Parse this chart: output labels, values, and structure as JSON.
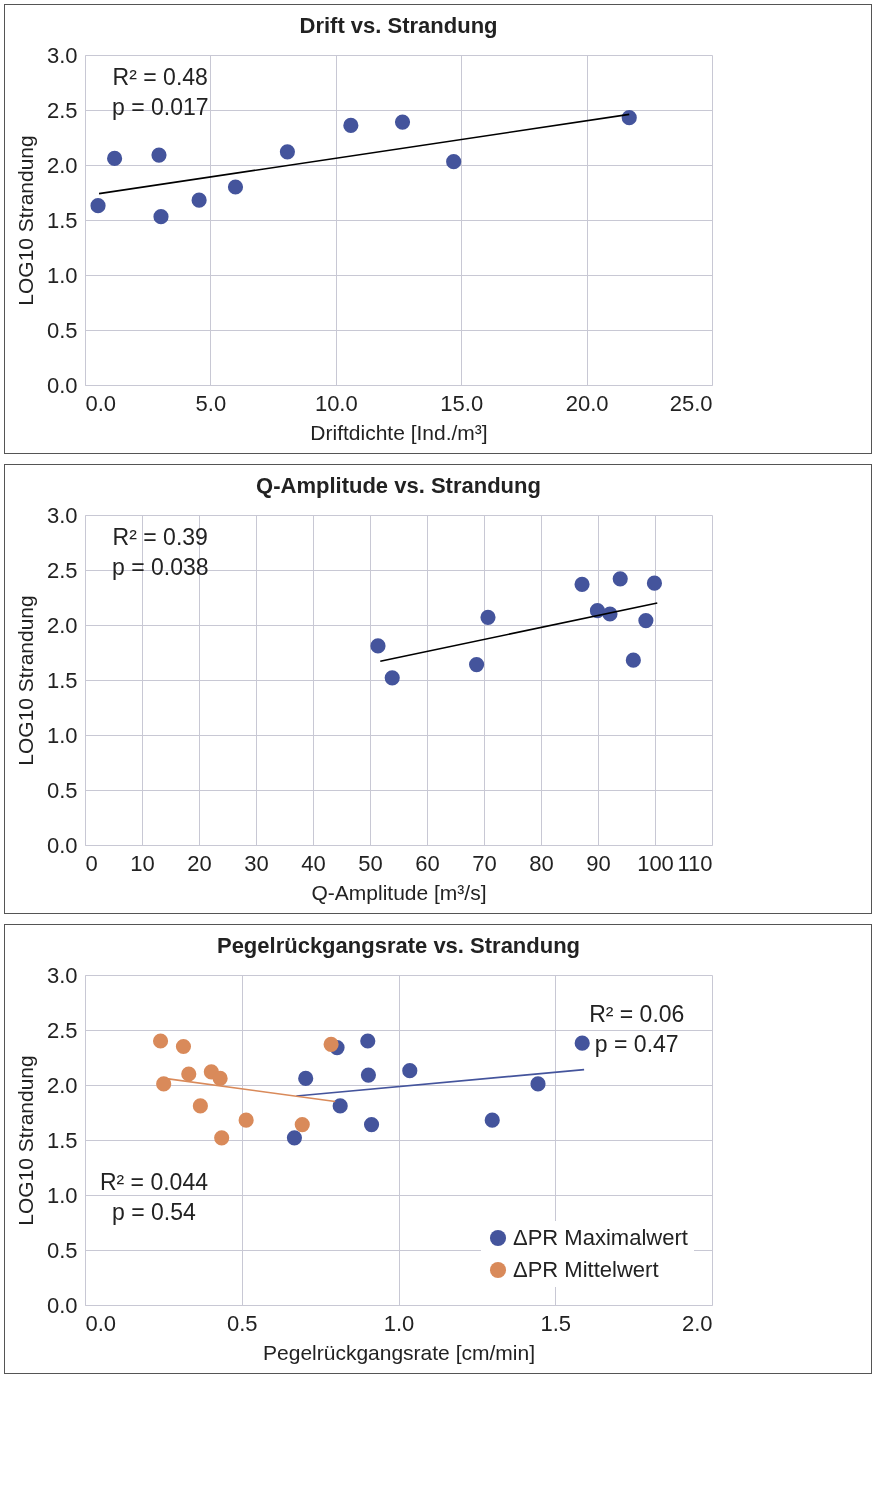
{
  "chart_data": [
    {
      "type": "scatter",
      "title": "Drift vs. Strandung",
      "xlabel": "Driftdichte [Ind./m³]",
      "ylabel": "LOG10 Strandung",
      "series": [
        {
          "color": "#44549c",
          "x": [
            0.52,
            1.18,
            2.95,
            3.03,
            4.55,
            6.0,
            8.07,
            10.6,
            12.66,
            14.7,
            21.7
          ],
          "values": [
            1.63,
            2.06,
            2.09,
            1.53,
            1.68,
            1.8,
            2.12,
            2.36,
            2.39,
            2.03,
            2.43
          ]
        },
        {
          "type": "line",
          "color": "#000000",
          "x": [
            0.56,
            21.7
          ],
          "values": [
            1.74,
            2.46
          ]
        }
      ],
      "annotations": [
        "R² = 0.48",
        "p = 0.017"
      ],
      "xlim": [
        0,
        25
      ],
      "xticks": [
        {
          "value": 0,
          "label": "0.0"
        },
        {
          "value": 5,
          "label": "5.0"
        },
        {
          "value": 10,
          "label": "10.0"
        },
        {
          "value": 15,
          "label": "15.0"
        },
        {
          "value": 20,
          "label": "20.0"
        },
        {
          "value": 25,
          "label": "25.0"
        }
      ],
      "ylim": [
        0,
        3
      ],
      "yticks": [
        {
          "value": 0,
          "label": "0.0"
        },
        0.5,
        {
          "value": 1,
          "label": "1.0"
        },
        1.5,
        {
          "value": 2,
          "label": "2.0"
        },
        2.5,
        {
          "value": 3,
          "label": "3.0"
        }
      ],
      "grid": true
    },
    {
      "type": "scatter",
      "title": "Q-Amplitude vs. Strandung",
      "xlabel": "Q-Amplitude [m³/s]",
      "ylabel": "LOG10 Strandung",
      "series": [
        {
          "color": "#44549c",
          "x": [
            51.4,
            53.9,
            68.7,
            70.7,
            87.2,
            89.9,
            92.1,
            93.9,
            96.2,
            98.4,
            99.9
          ],
          "values": [
            1.81,
            1.52,
            1.64,
            2.07,
            2.37,
            2.13,
            2.1,
            2.42,
            1.68,
            2.04,
            2.38
          ]
        },
        {
          "type": "line",
          "color": "#000000",
          "x": [
            51.8,
            100.4
          ],
          "values": [
            1.67,
            2.2
          ]
        }
      ],
      "annotations": [
        "R² = 0.39",
        "p = 0.038"
      ],
      "xlim": [
        0,
        110
      ],
      "xticks": [
        0,
        10,
        20,
        30,
        40,
        50,
        60,
        70,
        80,
        90,
        100,
        110
      ],
      "ylim": [
        0,
        3
      ],
      "yticks": [
        {
          "value": 0,
          "label": "0.0"
        },
        0.5,
        {
          "value": 1,
          "label": "1.0"
        },
        1.5,
        {
          "value": 2,
          "label": "2.0"
        },
        2.5,
        {
          "value": 3,
          "label": "3.0"
        }
      ],
      "grid": true
    },
    {
      "type": "scatter",
      "title": "Pegelrückgangsrate vs. Strandung",
      "xlabel": "Pegelrückgangsrate [cm/min]",
      "ylabel": "LOG10 Strandung",
      "series": [
        {
          "name": "ΔPR Maximalwert",
          "color": "#44549c",
          "x": [
            0.668,
            0.704,
            0.804,
            0.814,
            0.902,
            0.904,
            0.914,
            1.036,
            1.299,
            1.445,
            1.586
          ],
          "values": [
            1.52,
            2.06,
            2.34,
            1.81,
            2.4,
            2.09,
            1.64,
            2.13,
            1.68,
            2.01,
            2.38
          ]
        },
        {
          "name": "ΔPR Mittelwert",
          "color": "#d98a5a",
          "x": [
            0.241,
            0.251,
            0.314,
            0.331,
            0.368,
            0.403,
            0.431,
            0.436,
            0.514,
            0.693,
            0.785
          ],
          "values": [
            2.4,
            2.01,
            2.35,
            2.1,
            1.81,
            2.12,
            2.06,
            1.52,
            1.68,
            1.64,
            2.37
          ]
        },
        {
          "type": "line",
          "color": "#44549c",
          "x": [
            0.674,
            1.592
          ],
          "values": [
            1.9,
            2.14
          ]
        },
        {
          "type": "line",
          "color": "#d98a5a",
          "x": [
            0.254,
            0.798
          ],
          "values": [
            2.06,
            1.85
          ]
        }
      ],
      "annotations": [
        "R² = 0.06",
        "p = 0.47",
        "R² = 0.044",
        "p = 0.54"
      ],
      "xlim": [
        0,
        2
      ],
      "xticks": [
        {
          "value": 0,
          "label": "0.0"
        },
        0.5,
        {
          "value": 1,
          "label": "1.0"
        },
        1.5,
        {
          "value": 2,
          "label": "2.0"
        }
      ],
      "ylim": [
        0,
        3
      ],
      "yticks": [
        {
          "value": 0,
          "label": "0.0"
        },
        0.5,
        {
          "value": 1,
          "label": "1.0"
        },
        1.5,
        {
          "value": 2,
          "label": "2.0"
        },
        2.5,
        {
          "value": 3,
          "label": "3.0"
        }
      ],
      "grid": true,
      "legend": "bottom right"
    }
  ]
}
